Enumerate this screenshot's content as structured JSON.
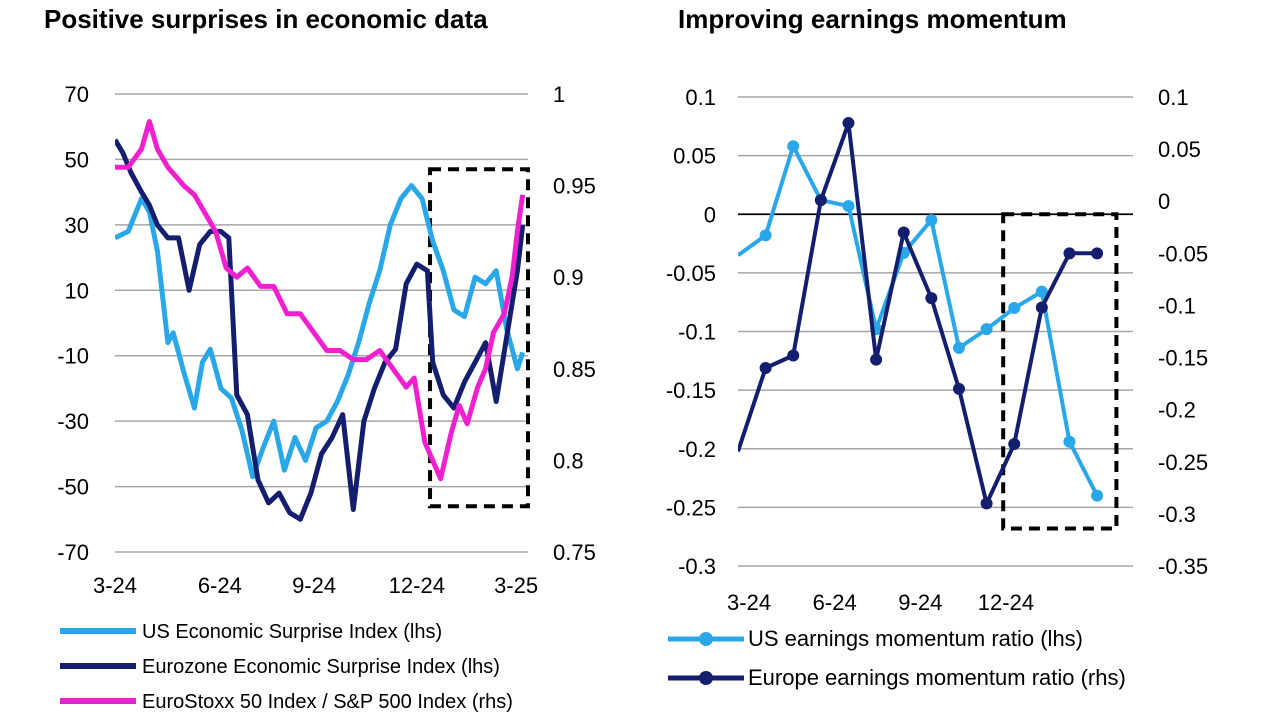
{
  "chart_data": [
    {
      "type": "line",
      "title": "Positive surprises in economic data",
      "x_labels": [
        "3-24",
        "6-24",
        "9-24",
        "12-24",
        "3-25"
      ],
      "y_left": {
        "ticks": [
          70,
          50,
          30,
          10,
          -10,
          -30,
          -50,
          -70
        ],
        "tick_labels": [
          "70",
          "50",
          "30",
          "10",
          "-10",
          "-30",
          "-50",
          "-70"
        ],
        "range": [
          -70,
          70
        ]
      },
      "y_right": {
        "ticks": [
          1,
          0.95,
          0.9,
          0.85,
          0.8,
          0.75
        ],
        "tick_labels": [
          "1",
          "0.95",
          "0.9",
          "0.85",
          "0.8",
          "0.75"
        ],
        "range": [
          0.75,
          1.0
        ]
      },
      "grid": true,
      "highlight_box": {
        "x_range": [
          11.9,
          15.6
        ],
        "y_range": [
          -56,
          47
        ]
      },
      "series": [
        {
          "name": "US Economic Surprise Index (lhs)",
          "axis": "left",
          "color": "#29a7e8",
          "x": [
            0,
            0.5,
            1,
            1.3,
            1.6,
            2,
            2.2,
            2.6,
            3,
            3.3,
            3.6,
            4,
            4.4,
            4.8,
            5.2,
            5.6,
            6,
            6.4,
            6.8,
            7.2,
            7.6,
            8,
            8.4,
            8.8,
            9.2,
            9.6,
            10,
            10.4,
            10.8,
            11.2,
            11.6,
            12,
            12.4,
            12.8,
            13.2,
            13.6,
            14,
            14.4,
            14.8,
            15.2,
            15.4
          ],
          "y": [
            26,
            28,
            38,
            34,
            22,
            -6,
            -3,
            -15,
            -26,
            -12,
            -8,
            -20,
            -23,
            -33,
            -47,
            -38,
            -30,
            -45,
            -35,
            -42,
            -32,
            -30,
            -24,
            -16,
            -6,
            6,
            16,
            30,
            38,
            42,
            38,
            25,
            16,
            4,
            2,
            14,
            12,
            16,
            -2,
            -14,
            -9
          ]
        },
        {
          "name": "Eurozone Economic Surprise Index (lhs)",
          "axis": "left",
          "color": "#141e6e",
          "x": [
            0,
            0.3,
            0.6,
            1,
            1.3,
            1.6,
            2,
            2.4,
            2.8,
            3.2,
            3.6,
            4,
            4.3,
            4.6,
            5,
            5.4,
            5.8,
            6.2,
            6.6,
            7,
            7.4,
            7.8,
            8.2,
            8.6,
            9,
            9.4,
            9.8,
            10.2,
            10.6,
            11,
            11.4,
            11.8,
            12,
            12.4,
            12.8,
            13.2,
            13.6,
            14,
            14.4,
            14.8,
            15.2,
            15.4
          ],
          "y": [
            56,
            52,
            46,
            40,
            36,
            30,
            26,
            26,
            10,
            24,
            28,
            28,
            26,
            -22,
            -28,
            -48,
            -55,
            -52,
            -58,
            -60,
            -52,
            -40,
            -35,
            -28,
            -57,
            -30,
            -20,
            -12,
            -8,
            12,
            18,
            16,
            -12,
            -22,
            -26,
            -18,
            -12,
            -6,
            -24,
            -4,
            16,
            30
          ]
        },
        {
          "name": "EuroStoxx 50 Index / S&P 500 Index (rhs)",
          "axis": "right",
          "color": "#f020d0",
          "x": [
            0,
            0.5,
            1,
            1.3,
            1.6,
            2,
            2.3,
            2.6,
            3,
            3.4,
            3.8,
            4.2,
            4.6,
            5,
            5.5,
            6,
            6.5,
            7,
            7.5,
            8,
            8.5,
            9,
            9.5,
            10,
            10.5,
            11,
            11.3,
            11.7,
            12,
            12.3,
            12.7,
            13,
            13.3,
            13.7,
            14,
            14.3,
            14.7,
            15,
            15.2,
            15.4
          ],
          "y": [
            0.96,
            0.96,
            0.97,
            0.985,
            0.97,
            0.96,
            0.955,
            0.95,
            0.945,
            0.935,
            0.925,
            0.905,
            0.9,
            0.905,
            0.895,
            0.895,
            0.88,
            0.88,
            0.87,
            0.86,
            0.86,
            0.855,
            0.855,
            0.86,
            0.85,
            0.84,
            0.845,
            0.81,
            0.8,
            0.79,
            0.815,
            0.83,
            0.82,
            0.84,
            0.85,
            0.87,
            0.88,
            0.9,
            0.925,
            0.945
          ]
        }
      ],
      "legend_position": "bottom"
    },
    {
      "type": "line",
      "title": "Improving earnings momentum",
      "x_labels": [
        "3-24",
        "6-24",
        "9-24",
        "12-24"
      ],
      "y_left": {
        "ticks": [
          0.1,
          0.05,
          0,
          -0.05,
          -0.1,
          -0.15,
          -0.2,
          -0.25,
          -0.3
        ],
        "tick_labels": [
          "0.1",
          "0.05",
          "0",
          "-0.05",
          "-0.1",
          "-0.15",
          "-0.2",
          "-0.25",
          "-0.3"
        ],
        "range": [
          -0.3,
          0.1
        ]
      },
      "y_right": {
        "ticks": [
          0.1,
          0.05,
          0,
          -0.05,
          -0.1,
          -0.15,
          -0.2,
          -0.25,
          -0.3,
          -0.35
        ],
        "tick_labels": [
          "0.1",
          "0.05",
          "0",
          "-0.05",
          "-0.1",
          "-0.15",
          "-0.2",
          "-0.25",
          "-0.3",
          "-0.35"
        ],
        "range": [
          -0.35,
          0.1
        ]
      },
      "grid": true,
      "zero_line": true,
      "highlight_box": {
        "x_range": [
          9.6,
          13.7
        ],
        "y_range": [
          -0.268,
          0
        ]
      },
      "series": [
        {
          "name": "US earnings momentum ratio (lhs)",
          "axis": "left",
          "color": "#29a7e8",
          "x": [
            0,
            1,
            2,
            3,
            4,
            5,
            6,
            7,
            8,
            9,
            10,
            11,
            12,
            13
          ],
          "y": [
            -0.035,
            -0.018,
            0.058,
            0.012,
            0.007,
            -0.098,
            -0.033,
            -0.005,
            -0.114,
            -0.098,
            -0.08,
            -0.066,
            -0.194,
            -0.24
          ]
        },
        {
          "name": "Europe earnings momentum ratio (rhs)",
          "axis": "right",
          "color": "#141e6e",
          "x": [
            0,
            1,
            2,
            3,
            4,
            5,
            6,
            7,
            8,
            9,
            10,
            11,
            12,
            13
          ],
          "y": [
            -0.24,
            -0.16,
            -0.148,
            0.001,
            0.075,
            -0.152,
            -0.03,
            -0.093,
            -0.18,
            -0.29,
            -0.233,
            -0.102,
            -0.05,
            -0.05
          ]
        }
      ],
      "legend_position": "bottom"
    }
  ]
}
